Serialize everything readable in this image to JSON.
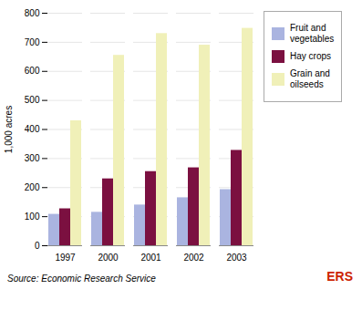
{
  "chart_data": {
    "type": "bar",
    "categories": [
      "1997",
      "2000",
      "2001",
      "2002",
      "2003"
    ],
    "series": [
      {
        "name": "Fruit and\nvegetables",
        "color": "#aab4e0",
        "values": [
          108,
          115,
          140,
          165,
          193
        ]
      },
      {
        "name": "Hay crops",
        "color": "#7b1040",
        "values": [
          127,
          230,
          255,
          268,
          328
        ]
      },
      {
        "name": "Grain and\noilseeds",
        "color": "#f0f0b8",
        "values": [
          430,
          655,
          730,
          690,
          748
        ]
      }
    ],
    "ylabel": "1,000 acres",
    "ylim": [
      0,
      800
    ],
    "yticks": [
      0,
      100,
      200,
      300,
      400,
      500,
      600,
      700,
      800
    ],
    "grid": true,
    "legend": "upper right",
    "annotations": [
      "Source: Economic Research Service",
      "ERS"
    ]
  }
}
